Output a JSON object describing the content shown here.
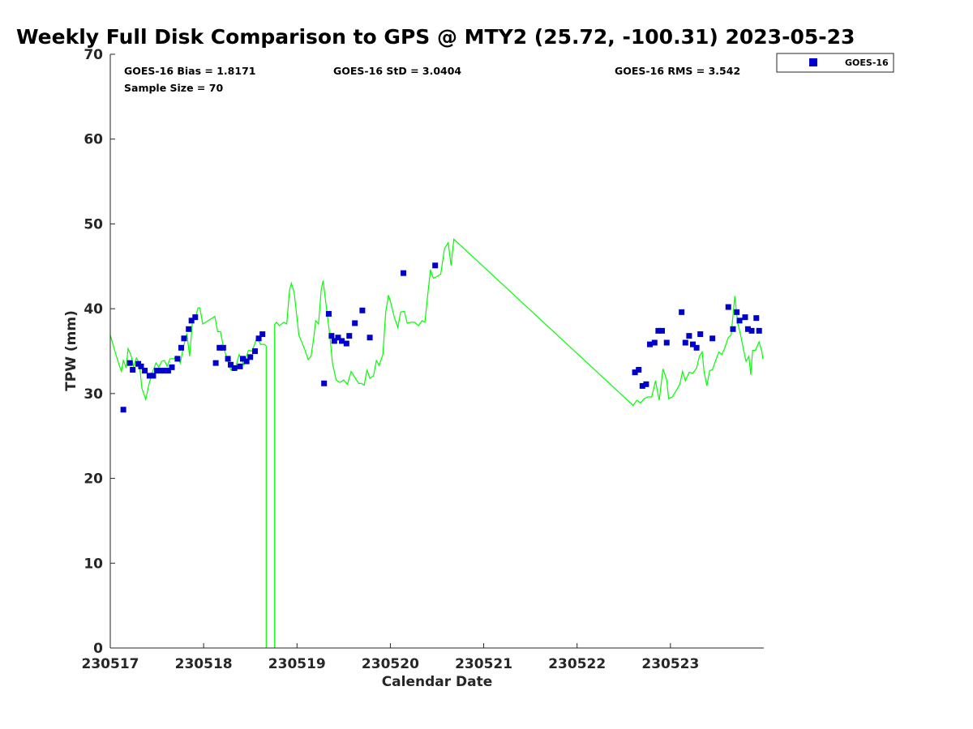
{
  "chart_data": {
    "type": "scatter",
    "title": "Weekly Full Disk Comparison to GPS @ MTY2 (25.72, -100.31) 2023-05-23",
    "xlabel": "Calendar Date",
    "ylabel": "TPW (mm)",
    "xlim": [
      0,
      7
    ],
    "ylim": [
      0,
      70
    ],
    "x_ticks": [
      {
        "value": 0,
        "label": "230517"
      },
      {
        "value": 1,
        "label": "230518"
      },
      {
        "value": 2,
        "label": "230519"
      },
      {
        "value": 3,
        "label": "230520"
      },
      {
        "value": 4,
        "label": "230521"
      },
      {
        "value": 5,
        "label": "230522"
      },
      {
        "value": 6,
        "label": "230523"
      }
    ],
    "y_ticks": [
      0,
      10,
      20,
      30,
      40,
      50,
      60,
      70
    ],
    "stats": {
      "bias": "GOES-16 Bias = 1.8171",
      "sample": "Sample Size = 70",
      "std": "GOES-16 StD = 3.0404",
      "rms": "GOES-16 RMS = 3.542"
    },
    "legend": {
      "label": "GOES-16",
      "placement": "top-right, outside axes"
    },
    "colors": {
      "goes": "#0000cc",
      "gps": "#00ff00",
      "axis": "#262626"
    },
    "series": [
      {
        "name": "GOES-16",
        "marker": "square",
        "points": [
          [
            0.14,
            28.1
          ],
          [
            0.21,
            33.6
          ],
          [
            0.24,
            32.8
          ],
          [
            0.3,
            33.5
          ],
          [
            0.33,
            33.2
          ],
          [
            0.37,
            32.7
          ],
          [
            0.42,
            32.1
          ],
          [
            0.46,
            32.1
          ],
          [
            0.5,
            32.7
          ],
          [
            0.54,
            32.7
          ],
          [
            0.58,
            32.7
          ],
          [
            0.62,
            32.7
          ],
          [
            0.66,
            33.1
          ],
          [
            0.72,
            34.1
          ],
          [
            0.76,
            35.4
          ],
          [
            0.79,
            36.5
          ],
          [
            0.84,
            37.6
          ],
          [
            0.87,
            38.6
          ],
          [
            0.91,
            39.0
          ],
          [
            1.13,
            33.6
          ],
          [
            1.17,
            35.4
          ],
          [
            1.21,
            35.4
          ],
          [
            1.26,
            34.1
          ],
          [
            1.29,
            33.4
          ],
          [
            1.33,
            33.0
          ],
          [
            1.39,
            33.2
          ],
          [
            1.42,
            34.1
          ],
          [
            1.46,
            33.8
          ],
          [
            1.5,
            34.3
          ],
          [
            1.55,
            35.0
          ],
          [
            1.59,
            36.5
          ],
          [
            1.63,
            37.0
          ],
          [
            2.29,
            31.2
          ],
          [
            2.34,
            39.4
          ],
          [
            2.37,
            36.8
          ],
          [
            2.4,
            36.2
          ],
          [
            2.44,
            36.6
          ],
          [
            2.48,
            36.2
          ],
          [
            2.53,
            35.9
          ],
          [
            2.56,
            36.8
          ],
          [
            2.62,
            38.3
          ],
          [
            2.7,
            39.8
          ],
          [
            2.78,
            36.6
          ],
          [
            3.14,
            44.2
          ],
          [
            3.48,
            45.1
          ],
          [
            5.62,
            32.5
          ],
          [
            5.66,
            32.8
          ],
          [
            5.7,
            30.9
          ],
          [
            5.74,
            31.1
          ],
          [
            5.78,
            35.8
          ],
          [
            5.83,
            36.0
          ],
          [
            5.87,
            37.4
          ],
          [
            5.91,
            37.4
          ],
          [
            5.96,
            36.0
          ],
          [
            6.12,
            39.6
          ],
          [
            6.16,
            36.0
          ],
          [
            6.2,
            36.8
          ],
          [
            6.24,
            35.8
          ],
          [
            6.28,
            35.4
          ],
          [
            6.32,
            37.0
          ],
          [
            6.45,
            36.5
          ],
          [
            6.62,
            40.2
          ],
          [
            6.67,
            37.6
          ],
          [
            6.71,
            39.6
          ],
          [
            6.74,
            38.6
          ],
          [
            6.8,
            39.0
          ],
          [
            6.83,
            37.6
          ],
          [
            6.87,
            37.4
          ],
          [
            6.92,
            38.9
          ],
          [
            6.95,
            37.4
          ]
        ]
      },
      {
        "name": "GPS",
        "style": "line",
        "segments": [
          [
            [
              0.0,
              36.9
            ],
            [
              0.06,
              34.6
            ],
            [
              0.1,
              33.2
            ],
            [
              0.12,
              32.6
            ],
            [
              0.14,
              33.9
            ],
            [
              0.17,
              33.0
            ],
            [
              0.19,
              35.3
            ],
            [
              0.22,
              34.6
            ],
            [
              0.25,
              33.2
            ],
            [
              0.28,
              34.2
            ],
            [
              0.31,
              33.6
            ],
            [
              0.34,
              30.6
            ],
            [
              0.38,
              29.3
            ],
            [
              0.41,
              30.9
            ],
            [
              0.45,
              32.5
            ],
            [
              0.49,
              33.6
            ],
            [
              0.52,
              33.1
            ],
            [
              0.55,
              33.8
            ],
            [
              0.58,
              33.9
            ],
            [
              0.61,
              33.2
            ],
            [
              0.64,
              34.1
            ],
            [
              0.68,
              34.1
            ],
            [
              0.71,
              34.4
            ],
            [
              0.75,
              33.6
            ],
            [
              0.78,
              35.3
            ],
            [
              0.82,
              37.1
            ],
            [
              0.85,
              34.4
            ],
            [
              0.88,
              38.4
            ],
            [
              0.91,
              38.9
            ],
            [
              0.94,
              40.1
            ],
            [
              0.96,
              40.1
            ],
            [
              0.99,
              38.2
            ],
            [
              1.05,
              38.6
            ],
            [
              1.12,
              39.1
            ],
            [
              1.15,
              37.3
            ],
            [
              1.18,
              37.3
            ],
            [
              1.21,
              35.6
            ],
            [
              1.25,
              34.1
            ],
            [
              1.29,
              32.8
            ],
            [
              1.34,
              33.0
            ],
            [
              1.38,
              34.6
            ],
            [
              1.43,
              33.4
            ],
            [
              1.48,
              35.1
            ],
            [
              1.52,
              35.0
            ],
            [
              1.57,
              36.6
            ],
            [
              1.61,
              35.8
            ],
            [
              1.65,
              35.8
            ],
            [
              1.67,
              35.6
            ],
            [
              1.67,
              0
            ]
          ],
          [
            [
              1.76,
              0
            ],
            [
              1.76,
              38.1
            ],
            [
              1.78,
              38.4
            ],
            [
              1.81,
              38.0
            ],
            [
              1.86,
              38.4
            ],
            [
              1.89,
              38.2
            ],
            [
              1.92,
              42.2
            ],
            [
              1.94,
              43.0
            ],
            [
              1.97,
              41.9
            ],
            [
              2.0,
              38.9
            ],
            [
              2.02,
              36.9
            ],
            [
              2.08,
              35.3
            ],
            [
              2.12,
              34.0
            ],
            [
              2.15,
              34.4
            ],
            [
              2.18,
              36.6
            ],
            [
              2.2,
              38.6
            ],
            [
              2.23,
              38.2
            ],
            [
              2.26,
              42.3
            ],
            [
              2.28,
              43.3
            ],
            [
              2.31,
              40.6
            ],
            [
              2.35,
              37.0
            ],
            [
              2.38,
              33.6
            ],
            [
              2.42,
              31.6
            ],
            [
              2.46,
              31.3
            ],
            [
              2.5,
              31.6
            ],
            [
              2.54,
              31.1
            ],
            [
              2.58,
              32.6
            ],
            [
              2.62,
              31.9
            ],
            [
              2.66,
              31.2
            ],
            [
              2.69,
              31.2
            ],
            [
              2.72,
              31.0
            ],
            [
              2.75,
              32.8
            ],
            [
              2.78,
              31.8
            ],
            [
              2.82,
              32.1
            ],
            [
              2.85,
              33.9
            ],
            [
              2.88,
              33.3
            ],
            [
              2.92,
              34.6
            ],
            [
              2.95,
              39.6
            ],
            [
              2.98,
              41.6
            ],
            [
              3.0,
              40.9
            ],
            [
              3.04,
              39.1
            ],
            [
              3.08,
              37.8
            ],
            [
              3.11,
              39.6
            ],
            [
              3.15,
              39.7
            ],
            [
              3.18,
              38.3
            ],
            [
              3.22,
              38.4
            ],
            [
              3.26,
              38.4
            ],
            [
              3.3,
              38.0
            ],
            [
              3.34,
              38.6
            ],
            [
              3.37,
              38.4
            ],
            [
              3.4,
              41.6
            ],
            [
              3.43,
              44.6
            ],
            [
              3.46,
              43.6
            ],
            [
              3.5,
              43.8
            ],
            [
              3.54,
              44.1
            ],
            [
              3.58,
              47.1
            ],
            [
              3.62,
              47.8
            ],
            [
              3.65,
              45.1
            ],
            [
              3.68,
              48.2
            ],
            [
              5.6,
              28.6
            ],
            [
              5.64,
              29.2
            ],
            [
              5.68,
              28.9
            ],
            [
              5.72,
              29.4
            ],
            [
              5.76,
              29.6
            ],
            [
              5.8,
              29.6
            ],
            [
              5.84,
              31.5
            ],
            [
              5.88,
              29.2
            ],
            [
              5.92,
              32.9
            ],
            [
              5.96,
              31.6
            ],
            [
              5.98,
              29.4
            ],
            [
              6.02,
              29.6
            ],
            [
              6.06,
              30.3
            ],
            [
              6.1,
              31.1
            ],
            [
              6.13,
              32.6
            ],
            [
              6.16,
              31.5
            ],
            [
              6.2,
              32.5
            ],
            [
              6.24,
              32.4
            ],
            [
              6.28,
              33.0
            ],
            [
              6.31,
              34.4
            ],
            [
              6.34,
              34.9
            ],
            [
              6.36,
              32.6
            ],
            [
              6.39,
              30.9
            ],
            [
              6.42,
              32.7
            ],
            [
              6.45,
              32.8
            ],
            [
              6.49,
              34.1
            ],
            [
              6.52,
              34.9
            ],
            [
              6.55,
              34.6
            ],
            [
              6.58,
              35.3
            ],
            [
              6.62,
              36.6
            ],
            [
              6.65,
              36.9
            ],
            [
              6.69,
              41.5
            ],
            [
              6.72,
              38.3
            ],
            [
              6.75,
              37.0
            ],
            [
              6.78,
              35.3
            ],
            [
              6.81,
              33.8
            ],
            [
              6.84,
              34.4
            ],
            [
              6.86,
              32.2
            ],
            [
              6.88,
              35.1
            ],
            [
              6.91,
              35.1
            ],
            [
              6.95,
              36.1
            ],
            [
              6.98,
              34.9
            ],
            [
              6.99,
              34.1
            ]
          ]
        ]
      }
    ]
  }
}
